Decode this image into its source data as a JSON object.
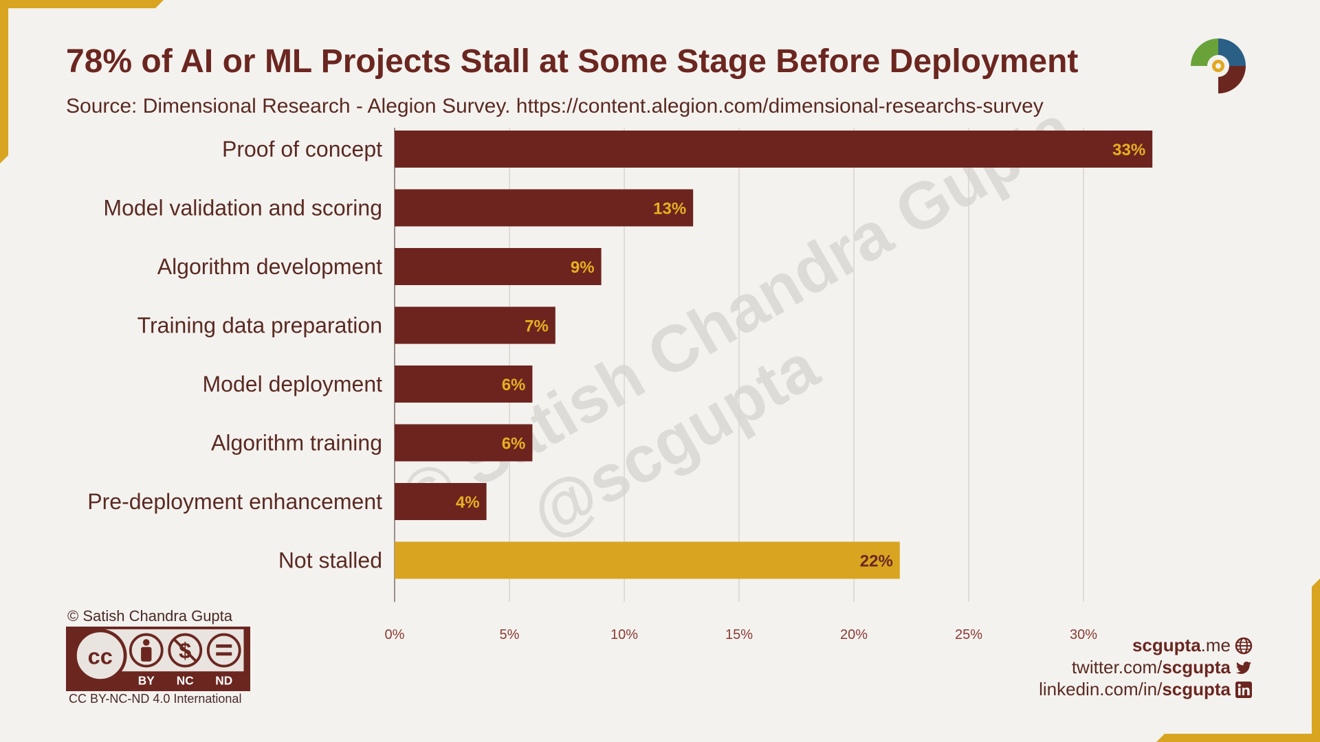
{
  "page": {
    "title": "78% of AI or ML Projects Stall at Some Stage Before Deployment",
    "subtitle": "Source: Dimensional Research - Alegion Survey. https://content.alegion.com/dimensional-researchs-survey",
    "watermark_line1": "© Satish Chandra Gupta",
    "watermark_line2": "@scgupta",
    "copyright": "© Satish Chandra Gupta",
    "license_badge": {
      "cc": "cc",
      "by": "BY",
      "nc": "NC",
      "nd": "ND"
    },
    "license_text": "CC BY-NC-ND 4.0 International",
    "social": {
      "website_prefix": "scgupta",
      "website_suffix": ".me",
      "twitter_prefix": "twitter.com/",
      "twitter_handle": "scgupta",
      "linkedin_prefix": "linkedin.com/in/",
      "linkedin_handle": "scgupta"
    },
    "icons": [
      "globe-icon",
      "twitter-icon",
      "linkedin-icon",
      "logo-icon"
    ]
  },
  "colors": {
    "bar": "#6d241e",
    "highlight_bar": "#d9a520",
    "bar_label_on_dark": "#e8b020",
    "bar_label_on_light": "#6b2620",
    "accent_gold": "#d9a520",
    "title": "#6b2620"
  },
  "chart_data": {
    "type": "bar",
    "orientation": "horizontal",
    "categories": [
      "Proof of concept",
      "Model validation and scoring",
      "Algorithm development",
      "Training data preparation",
      "Model deployment",
      "Algorithm training",
      "Pre-deployment enhancement",
      "Not stalled"
    ],
    "values": [
      33,
      13,
      9,
      7,
      6,
      6,
      4,
      22
    ],
    "value_labels": [
      "33%",
      "13%",
      "9%",
      "7%",
      "6%",
      "6%",
      "4%",
      "22%"
    ],
    "highlighted_category": "Not stalled",
    "x_ticks": [
      0,
      5,
      10,
      15,
      20,
      25,
      30
    ],
    "x_tick_labels": [
      "0%",
      "5%",
      "10%",
      "15%",
      "20%",
      "25%",
      "30%"
    ],
    "xlim": [
      0,
      35
    ],
    "grid": "vertical",
    "legend": "none"
  }
}
